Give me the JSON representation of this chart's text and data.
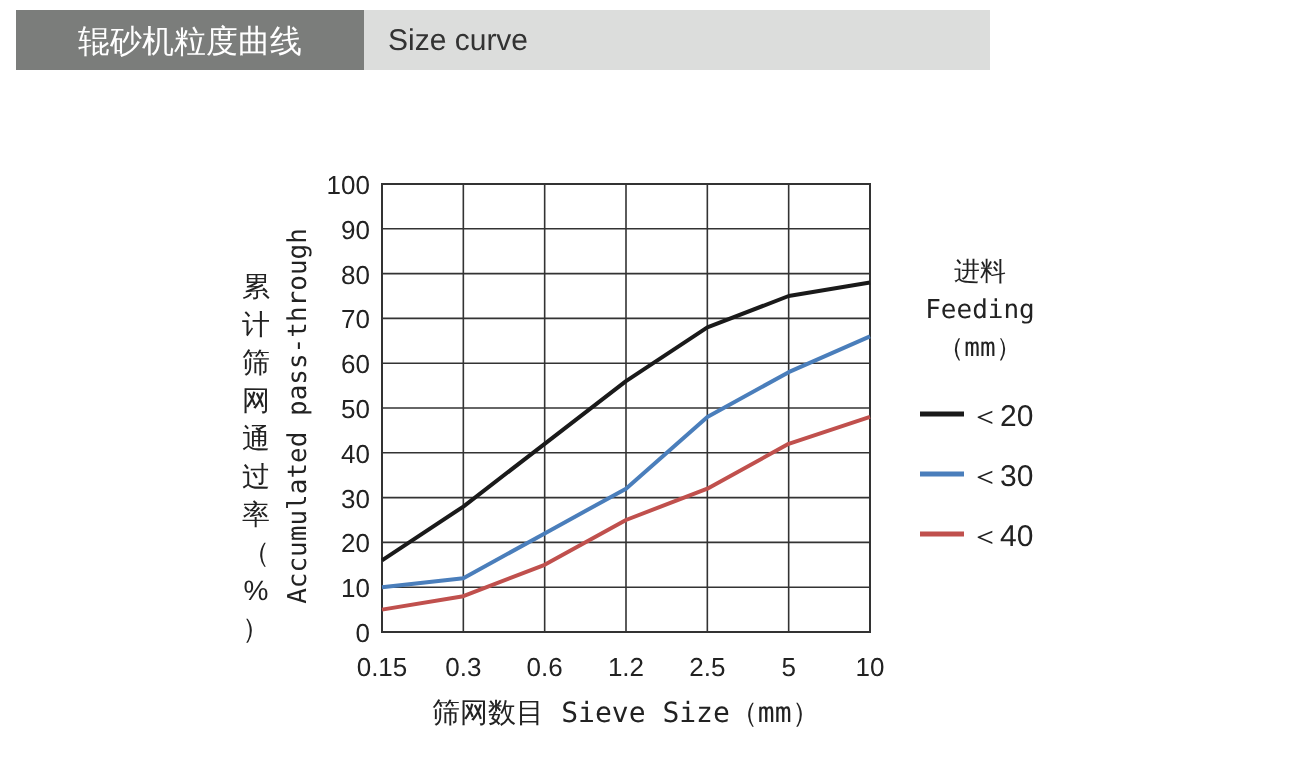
{
  "chart_data": {
    "type": "line",
    "title": "辊砂机粒度曲线",
    "subtitle": "Size curve",
    "xlabel": "筛网数目 Sieve Size（mm）",
    "ylabel": "累计筛网通过率（%） Accumulated pass-through",
    "legend_title": "进料 Feeding （mm）",
    "categories": [
      "0.15",
      "0.3",
      "0.6",
      "1.2",
      "2.5",
      "5",
      "10"
    ],
    "series": [
      {
        "name": "＜20",
        "color": "#1a1a1a",
        "values": [
          16,
          28,
          42,
          56,
          68,
          75,
          78
        ]
      },
      {
        "name": "＜30",
        "color": "#4a7ebb",
        "values": [
          10,
          12,
          22,
          32,
          48,
          58,
          66
        ]
      },
      {
        "name": "＜40",
        "color": "#c0504d",
        "values": [
          5,
          8,
          15,
          25,
          32,
          42,
          48
        ]
      }
    ],
    "ylim": [
      0,
      100
    ],
    "yticks": [
      0,
      10,
      20,
      30,
      40,
      50,
      60,
      70,
      80,
      90,
      100
    ],
    "grid": true,
    "legend": "right",
    "marker": "none",
    "line_style": "solid"
  }
}
